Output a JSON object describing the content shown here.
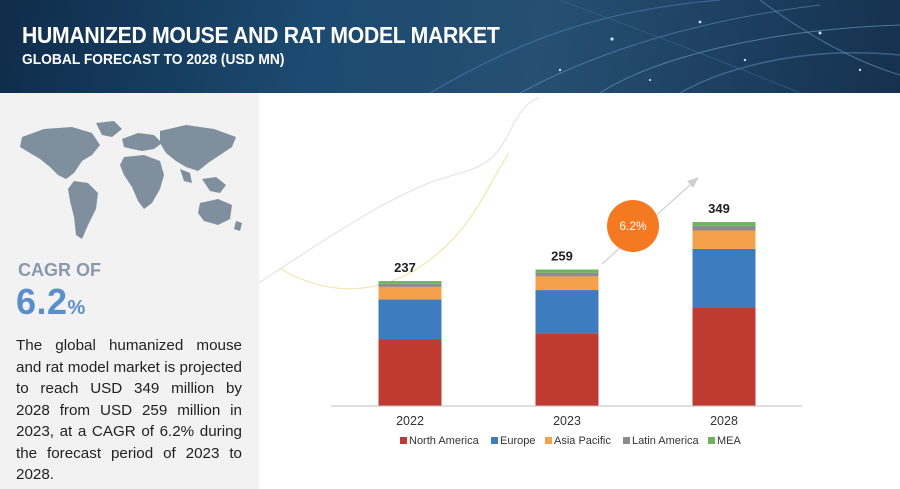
{
  "header": {
    "title": "HUMANIZED MOUSE AND RAT MODEL MARKET",
    "subtitle": "GLOBAL FORECAST TO 2028 (USD MN)"
  },
  "summary": {
    "cagr_label": "CAGR OF",
    "cagr_number": "6.2",
    "cagr_unit": "%",
    "description": "The global humanized mouse and rat model market is projected to reach USD 349 million by 2028 from USD 259 million in 2023, at a CAGR of 6.2% during the forecast period of 2023 to 2028."
  },
  "chart_data": {
    "type": "bar",
    "stacked": true,
    "categories": [
      "2022",
      "2023",
      "2028"
    ],
    "totals": [
      237,
      259,
      349
    ],
    "series": [
      {
        "name": "North America",
        "color": "#bf3a30",
        "values": [
          127,
          138,
          187
        ]
      },
      {
        "name": "Europe",
        "color": "#3d7cbf",
        "values": [
          75,
          82,
          111
        ]
      },
      {
        "name": "Asia Pacific",
        "color": "#f5a04b",
        "values": [
          24,
          26,
          35
        ]
      },
      {
        "name": "Latin America",
        "color": "#8c8c8c",
        "values": [
          6,
          7,
          9
        ]
      },
      {
        "name": "MEA",
        "color": "#6db35a",
        "values": [
          5,
          6,
          7
        ]
      }
    ],
    "cagr_badge": "6.2%",
    "cagr_badge_color": "#f47920",
    "legend_position": "bottom",
    "grid": false
  }
}
